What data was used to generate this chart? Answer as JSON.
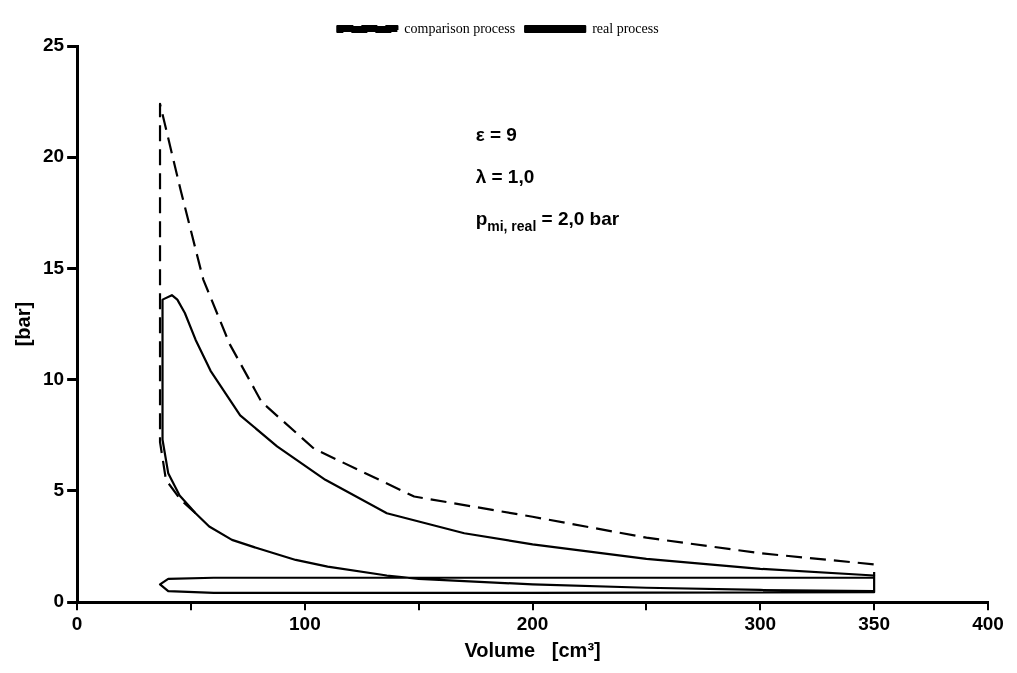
{
  "chart_data": {
    "type": "line",
    "xlabel": "Volume   [cm³]",
    "ylabel": "[bar]",
    "xlim": [
      0,
      400
    ],
    "ylim": [
      0,
      25
    ],
    "xticks": [
      0,
      {
        "value": 50,
        "label": null
      },
      100,
      {
        "value": 150,
        "label": null
      },
      200,
      {
        "value": 250,
        "label": null
      },
      300,
      350,
      400
    ],
    "yticks": [
      0,
      5,
      10,
      15,
      20,
      25
    ],
    "grid": false,
    "legend": "top",
    "marker": "none",
    "annotations": [
      "ε = 9",
      "λ = 1,0",
      "p$_{mi, real}$ = 2,0 bar"
    ],
    "series": [
      {
        "name": "comparison process",
        "color": "#000000",
        "line_style": "dashed",
        "x": [
          52,
          45.5,
          39,
          36.4,
          36.4,
          45.5,
          55.4,
          67,
          81,
          104,
          148,
          200,
          250,
          300,
          350,
          350
        ],
        "values": [
          4.0,
          4.6,
          5.5,
          7.2,
          22.4,
          18.5,
          14.5,
          11.6,
          9.0,
          6.9,
          4.75,
          3.84,
          2.9,
          2.2,
          1.7,
          1.2
        ]
      },
      {
        "name": "real process",
        "color": "#000000",
        "line_style": "solid",
        "x": [
          350,
          300,
          250,
          200,
          150,
          136,
          110,
          96,
          80,
          68,
          58,
          52,
          45,
          40,
          37.5,
          37.5,
          41.6,
          44,
          47.3,
          52,
          58.6,
          71.6,
          87.8,
          109,
          136,
          170,
          200,
          250,
          300,
          350,
          350,
          200,
          60,
          40,
          36.4,
          40,
          60,
          200,
          350,
          350
        ],
        "values": [
          0.5,
          0.55,
          0.65,
          0.8,
          1.05,
          1.2,
          1.6,
          1.9,
          2.4,
          2.8,
          3.4,
          4.0,
          4.8,
          5.8,
          7.3,
          13.6,
          13.8,
          13.6,
          13.0,
          11.8,
          10.4,
          8.4,
          7.0,
          5.5,
          4.0,
          3.1,
          2.6,
          1.95,
          1.5,
          1.2,
          1.1,
          1.1,
          1.1,
          1.05,
          0.8,
          0.5,
          0.42,
          0.42,
          0.45,
          1.1
        ]
      }
    ]
  }
}
